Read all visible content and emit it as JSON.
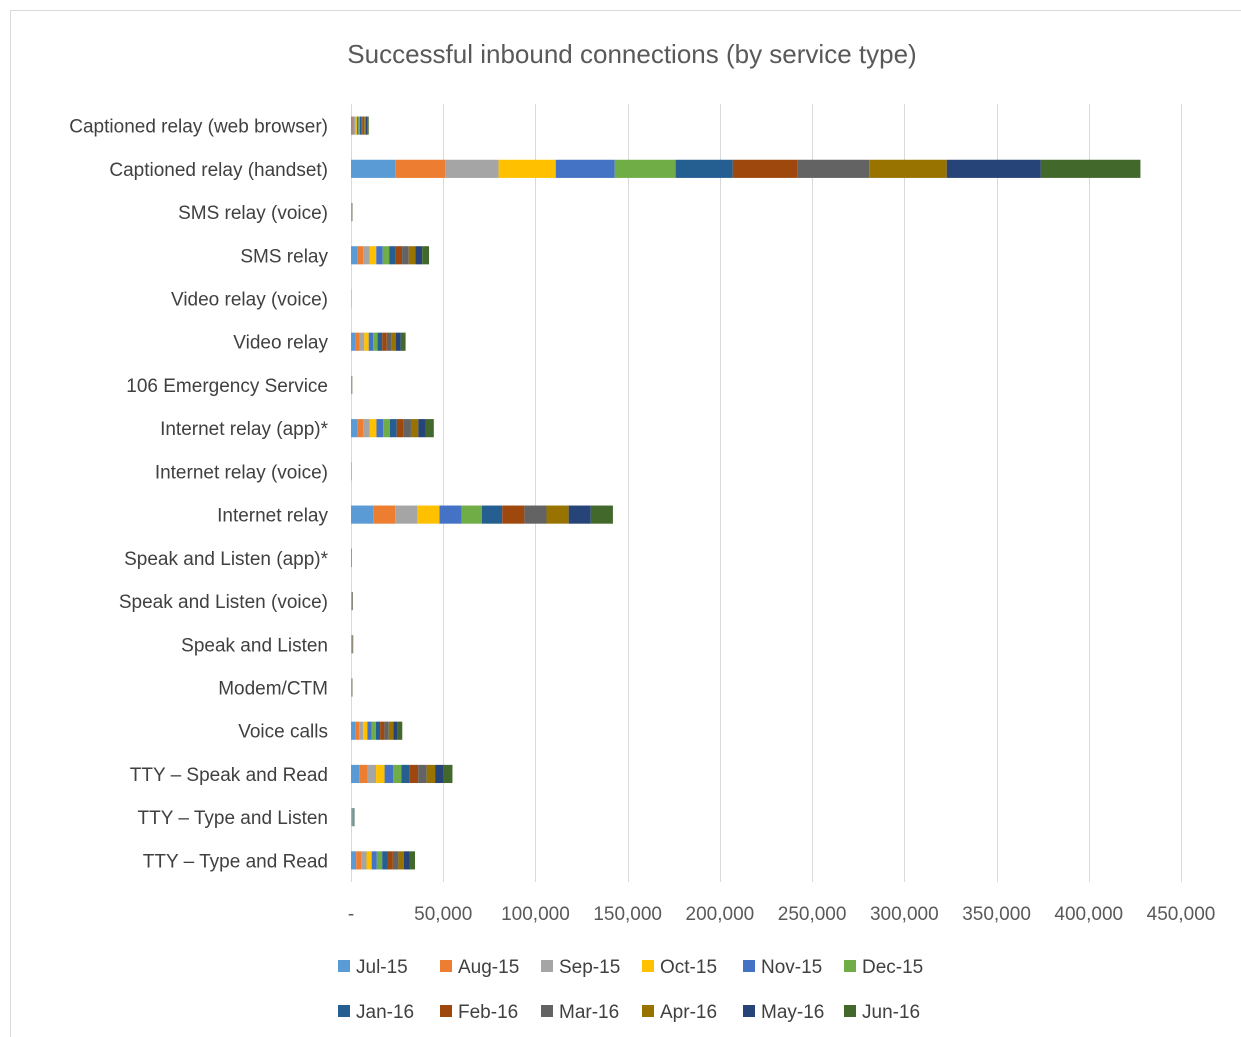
{
  "chart_data": {
    "type": "bar",
    "orientation": "horizontal",
    "stacked": true,
    "title": "Successful inbound connections (by service type)",
    "xlabel": "",
    "ylabel": "",
    "xlim": [
      0,
      450000
    ],
    "x_ticks": [
      0,
      50000,
      100000,
      150000,
      200000,
      250000,
      300000,
      350000,
      400000,
      450000
    ],
    "x_tick_labels": [
      "-",
      "50,000",
      "100,000",
      "150,000",
      "200,000",
      "250,000",
      "300,000",
      "350,000",
      "400,000",
      "450,000"
    ],
    "grid": "vertical",
    "legend_position": "bottom",
    "categories": [
      "Captioned relay (web browser)",
      "Captioned relay (handset)",
      "SMS relay (voice)",
      "SMS relay",
      "Video relay (voice)",
      "Video relay",
      "106 Emergency Service",
      "Internet relay (app)*",
      "Internet relay (voice)",
      "Internet relay",
      "Speak and Listen (app)*",
      "Speak and Listen (voice)",
      "Speak and Listen",
      "Modem/CTM",
      "Voice calls",
      "TTY – Speak and Read",
      "TTY – Type and Listen",
      "TTY – Type and Read"
    ],
    "series": [
      {
        "name": "Jul-15",
        "color": "#5b9bd5",
        "values": [
          800,
          24000,
          70,
          3300,
          10,
          2400,
          60,
          3300,
          20,
          12000,
          40,
          90,
          100,
          70,
          2200,
          4400,
          160,
          2800
        ]
      },
      {
        "name": "Aug-15",
        "color": "#ed7d31",
        "values": [
          800,
          27000,
          70,
          3400,
          10,
          2400,
          60,
          3400,
          20,
          12000,
          40,
          90,
          100,
          70,
          2200,
          4600,
          160,
          2800
        ]
      },
      {
        "name": "Sep-15",
        "color": "#a5a5a5",
        "values": [
          800,
          29000,
          70,
          3500,
          10,
          2400,
          60,
          3500,
          20,
          12000,
          40,
          90,
          100,
          70,
          2200,
          4600,
          160,
          2800
        ]
      },
      {
        "name": "Oct-15",
        "color": "#ffc000",
        "values": [
          800,
          31000,
          70,
          3500,
          10,
          2400,
          60,
          3600,
          20,
          12000,
          40,
          90,
          100,
          70,
          2300,
          4600,
          160,
          2800
        ]
      },
      {
        "name": "Nov-15",
        "color": "#4472c4",
        "values": [
          800,
          32000,
          70,
          3500,
          10,
          2400,
          60,
          3600,
          20,
          12000,
          40,
          90,
          100,
          70,
          2300,
          4600,
          160,
          2800
        ]
      },
      {
        "name": "Dec-15",
        "color": "#70ad47",
        "values": [
          800,
          33000,
          70,
          3500,
          10,
          2400,
          60,
          3700,
          20,
          11000,
          40,
          90,
          100,
          70,
          2300,
          4500,
          160,
          2900
        ]
      },
      {
        "name": "Jan-16",
        "color": "#255e91",
        "values": [
          800,
          31000,
          70,
          3500,
          10,
          2500,
          60,
          3700,
          20,
          11000,
          40,
          90,
          100,
          70,
          2300,
          4500,
          160,
          2900
        ]
      },
      {
        "name": "Feb-16",
        "color": "#9e480e",
        "values": [
          800,
          35000,
          70,
          3500,
          10,
          2500,
          60,
          3800,
          20,
          12000,
          40,
          90,
          100,
          70,
          2300,
          4600,
          160,
          2900
        ]
      },
      {
        "name": "Mar-16",
        "color": "#636363",
        "values": [
          800,
          39000,
          70,
          3600,
          10,
          2500,
          60,
          3900,
          20,
          12000,
          40,
          90,
          100,
          70,
          2400,
          4600,
          160,
          3000
        ]
      },
      {
        "name": "Apr-16",
        "color": "#997300",
        "values": [
          800,
          42000,
          70,
          3600,
          10,
          2500,
          60,
          4000,
          20,
          12000,
          40,
          90,
          100,
          70,
          2400,
          4600,
          160,
          3000
        ]
      },
      {
        "name": "May-16",
        "color": "#264478",
        "values": [
          800,
          51000,
          70,
          3700,
          10,
          2600,
          60,
          4100,
          20,
          12000,
          40,
          90,
          100,
          70,
          2400,
          4700,
          160,
          3000
        ]
      },
      {
        "name": "Jun-16",
        "color": "#43682b",
        "values": [
          800,
          54000,
          70,
          3700,
          10,
          2600,
          60,
          4300,
          20,
          12000,
          40,
          90,
          100,
          70,
          2500,
          4700,
          160,
          3000
        ]
      }
    ]
  }
}
